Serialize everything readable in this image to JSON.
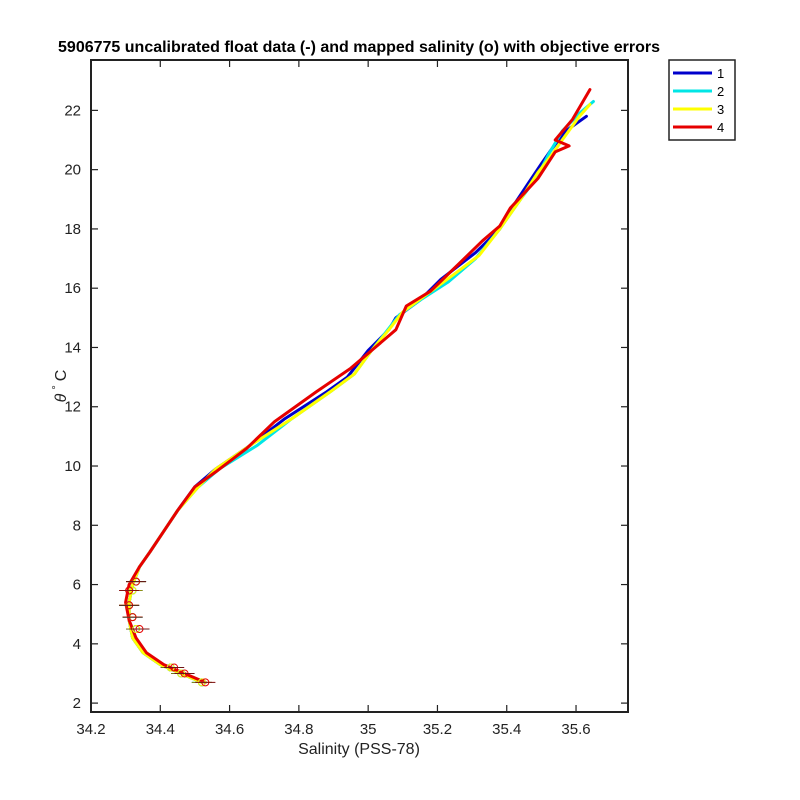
{
  "chart_data": {
    "type": "line",
    "title": "5906775 uncalibrated float data (-) and mapped salinity (o) with objective errors",
    "xlabel": "Salinity (PSS-78)",
    "ylabel_symbol": "θ",
    "ylabel_unit": "C",
    "xlim": [
      34.2,
      35.75
    ],
    "ylim": [
      1.7,
      23.7
    ],
    "xticks": [
      "34.2",
      "34.4",
      "34.6",
      "34.8",
      "35",
      "35.2",
      "35.4",
      "35.6"
    ],
    "yticks": [
      "2",
      "4",
      "6",
      "8",
      "10",
      "12",
      "14",
      "16",
      "18",
      "20",
      "22"
    ],
    "grid": false,
    "legend_position": "outside-top-right",
    "series": [
      {
        "name": "1",
        "color": "#0000cc",
        "points": [
          [
            34.52,
            2.7
          ],
          [
            34.46,
            3.0
          ],
          [
            34.4,
            3.3
          ],
          [
            34.35,
            3.7
          ],
          [
            34.32,
            4.2
          ],
          [
            34.31,
            4.8
          ],
          [
            34.31,
            5.4
          ],
          [
            34.32,
            6.0
          ],
          [
            34.34,
            6.6
          ],
          [
            34.37,
            7.1
          ],
          [
            34.41,
            7.8
          ],
          [
            34.45,
            8.5
          ],
          [
            34.5,
            9.3
          ],
          [
            34.56,
            9.9
          ],
          [
            34.66,
            10.7
          ],
          [
            34.76,
            11.6
          ],
          [
            34.88,
            12.5
          ],
          [
            34.94,
            13.0
          ],
          [
            35.0,
            13.9
          ],
          [
            35.06,
            14.6
          ],
          [
            35.08,
            15.0
          ],
          [
            35.15,
            15.6
          ],
          [
            35.21,
            16.3
          ],
          [
            35.31,
            17.2
          ],
          [
            35.38,
            18.0
          ],
          [
            35.42,
            18.8
          ],
          [
            35.46,
            19.5
          ],
          [
            35.5,
            20.2
          ],
          [
            35.53,
            20.7
          ],
          [
            35.57,
            21.3
          ],
          [
            35.63,
            21.8
          ]
        ]
      },
      {
        "name": "2",
        "color": "#00e6e6",
        "points": [
          [
            34.52,
            2.7
          ],
          [
            34.46,
            3.0
          ],
          [
            34.4,
            3.3
          ],
          [
            34.35,
            3.7
          ],
          [
            34.32,
            4.2
          ],
          [
            34.31,
            4.8
          ],
          [
            34.31,
            5.4
          ],
          [
            34.32,
            6.0
          ],
          [
            34.34,
            6.6
          ],
          [
            34.37,
            7.1
          ],
          [
            34.41,
            7.8
          ],
          [
            34.45,
            8.5
          ],
          [
            34.51,
            9.3
          ],
          [
            34.57,
            9.9
          ],
          [
            34.68,
            10.7
          ],
          [
            34.78,
            11.6
          ],
          [
            34.89,
            12.5
          ],
          [
            34.96,
            13.1
          ],
          [
            35.01,
            13.9
          ],
          [
            35.05,
            14.5
          ],
          [
            35.09,
            15.1
          ],
          [
            35.15,
            15.6
          ],
          [
            35.23,
            16.2
          ],
          [
            35.31,
            17.0
          ],
          [
            35.38,
            18.0
          ],
          [
            35.44,
            19.0
          ],
          [
            35.49,
            19.8
          ],
          [
            35.52,
            20.5
          ],
          [
            35.56,
            21.3
          ],
          [
            35.61,
            21.9
          ],
          [
            35.65,
            22.3
          ]
        ]
      },
      {
        "name": "3",
        "color": "#ffff00",
        "points": [
          [
            34.52,
            2.7
          ],
          [
            34.46,
            3.0
          ],
          [
            34.4,
            3.3
          ],
          [
            34.35,
            3.7
          ],
          [
            34.32,
            4.2
          ],
          [
            34.31,
            4.8
          ],
          [
            34.31,
            5.4
          ],
          [
            34.32,
            6.0
          ],
          [
            34.34,
            6.6
          ],
          [
            34.37,
            7.1
          ],
          [
            34.41,
            7.8
          ],
          [
            34.45,
            8.5
          ],
          [
            34.51,
            9.3
          ],
          [
            34.56,
            9.9
          ],
          [
            34.66,
            10.7
          ],
          [
            34.78,
            11.6
          ],
          [
            34.89,
            12.5
          ],
          [
            34.96,
            13.1
          ],
          [
            35.01,
            13.9
          ],
          [
            35.06,
            14.6
          ],
          [
            35.1,
            15.2
          ],
          [
            35.17,
            15.8
          ],
          [
            35.24,
            16.4
          ],
          [
            35.32,
            17.1
          ],
          [
            35.38,
            18.0
          ],
          [
            35.44,
            19.0
          ],
          [
            35.49,
            19.9
          ],
          [
            35.53,
            20.5
          ],
          [
            35.56,
            21.0
          ],
          [
            35.61,
            21.8
          ],
          [
            35.64,
            22.2
          ]
        ]
      },
      {
        "name": "4",
        "color": "#e60000",
        "points": [
          [
            34.53,
            2.7
          ],
          [
            34.47,
            3.0
          ],
          [
            34.41,
            3.3
          ],
          [
            34.36,
            3.7
          ],
          [
            34.33,
            4.2
          ],
          [
            34.31,
            4.8
          ],
          [
            34.3,
            5.4
          ],
          [
            34.31,
            6.0
          ],
          [
            34.34,
            6.6
          ],
          [
            34.37,
            7.1
          ],
          [
            34.41,
            7.8
          ],
          [
            34.45,
            8.5
          ],
          [
            34.5,
            9.3
          ],
          [
            34.56,
            9.8
          ],
          [
            34.65,
            10.6
          ],
          [
            34.73,
            11.5
          ],
          [
            34.85,
            12.5
          ],
          [
            34.95,
            13.3
          ],
          [
            35.02,
            14.0
          ],
          [
            35.08,
            14.6
          ],
          [
            35.11,
            15.4
          ],
          [
            35.18,
            15.9
          ],
          [
            35.26,
            16.8
          ],
          [
            35.33,
            17.6
          ],
          [
            35.38,
            18.1
          ],
          [
            35.41,
            18.7
          ],
          [
            35.49,
            19.7
          ],
          [
            35.54,
            20.6
          ],
          [
            35.58,
            20.8
          ],
          [
            35.54,
            21.0
          ],
          [
            35.59,
            21.7
          ],
          [
            35.64,
            22.7
          ]
        ]
      }
    ],
    "mapped_points": [
      {
        "series": "1",
        "color": "#0000cc",
        "points": [
          [
            34.52,
            2.7
          ],
          [
            34.46,
            3.0
          ],
          [
            34.43,
            3.2
          ],
          [
            34.33,
            4.5
          ],
          [
            34.32,
            4.9
          ],
          [
            34.31,
            5.3
          ],
          [
            34.32,
            5.8
          ],
          [
            34.33,
            6.1
          ]
        ]
      },
      {
        "series": "2",
        "color": "#00e6e6",
        "points": [
          [
            34.52,
            2.7
          ],
          [
            34.46,
            3.0
          ],
          [
            34.43,
            3.2
          ],
          [
            34.33,
            4.5
          ],
          [
            34.32,
            4.9
          ],
          [
            34.31,
            5.3
          ],
          [
            34.32,
            5.8
          ],
          [
            34.33,
            6.1
          ]
        ]
      },
      {
        "series": "3",
        "color": "#ffff00",
        "points": [
          [
            34.52,
            2.7
          ],
          [
            34.46,
            3.0
          ],
          [
            34.43,
            3.2
          ],
          [
            34.33,
            4.5
          ],
          [
            34.32,
            4.9
          ],
          [
            34.31,
            5.3
          ],
          [
            34.32,
            5.8
          ],
          [
            34.33,
            6.1
          ]
        ]
      },
      {
        "series": "4",
        "color": "#e60000",
        "points": [
          [
            34.53,
            2.7
          ],
          [
            34.47,
            3.0
          ],
          [
            34.44,
            3.2
          ],
          [
            34.34,
            4.5
          ],
          [
            34.32,
            4.9
          ],
          [
            34.31,
            5.3
          ],
          [
            34.31,
            5.8
          ],
          [
            34.33,
            6.1
          ]
        ]
      }
    ]
  }
}
